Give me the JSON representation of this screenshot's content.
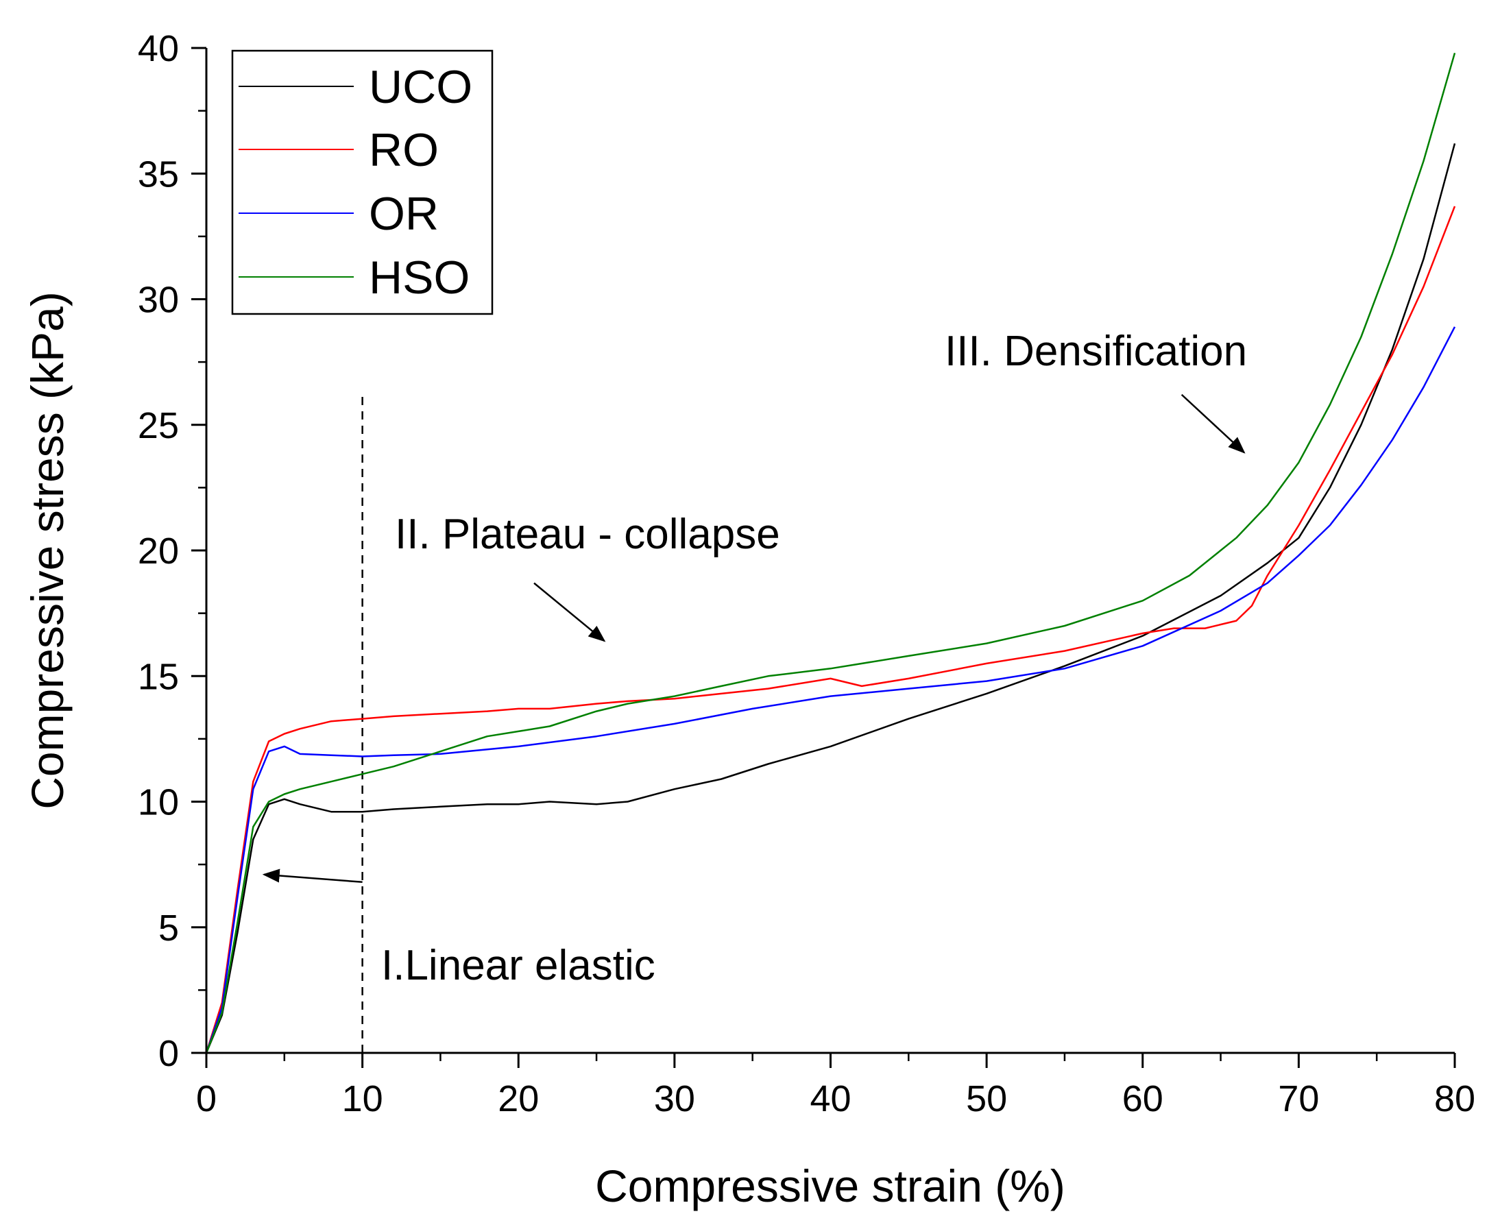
{
  "chart_data": {
    "type": "line",
    "title": "",
    "xlabel": "Compressive strain (%)",
    "ylabel": "Compressive stress (kPa)",
    "xlim": [
      0,
      80
    ],
    "ylim": [
      0,
      40
    ],
    "xticks": [
      0,
      10,
      20,
      30,
      40,
      50,
      60,
      70,
      80
    ],
    "yticks": [
      0,
      5,
      10,
      15,
      20,
      25,
      30,
      35,
      40
    ],
    "xtick_labels": [
      "0",
      "10",
      "20",
      "30",
      "40",
      "50",
      "60",
      "70",
      "80"
    ],
    "ytick_labels": [
      "0",
      "5",
      "10",
      "15",
      "20",
      "25",
      "30",
      "35",
      "40"
    ],
    "grid": false,
    "legend_position": "top-left",
    "series": [
      {
        "name": "UCO",
        "color": "#000000",
        "x": [
          0,
          1,
          2,
          3,
          4,
          5,
          6,
          8,
          10,
          12,
          15,
          18,
          20,
          22,
          25,
          27,
          30,
          33,
          36,
          40,
          45,
          50,
          55,
          60,
          65,
          68,
          70,
          72,
          74,
          76,
          78,
          80
        ],
        "y": [
          0,
          1.5,
          4.8,
          8.5,
          9.9,
          10.1,
          9.9,
          9.6,
          9.6,
          9.7,
          9.8,
          9.9,
          9.9,
          10.0,
          9.9,
          10.0,
          10.5,
          10.9,
          11.5,
          12.2,
          13.3,
          14.3,
          15.4,
          16.6,
          18.2,
          19.5,
          20.5,
          22.5,
          25.0,
          28.0,
          31.6,
          36.2
        ]
      },
      {
        "name": "RO",
        "color": "#ff0000",
        "x": [
          0,
          1,
          2,
          3,
          4,
          5,
          6,
          8,
          10,
          12,
          15,
          18,
          20,
          22,
          25,
          27,
          30,
          33,
          36,
          40,
          42,
          45,
          50,
          55,
          60,
          62,
          64,
          66,
          67,
          68,
          70,
          72,
          74,
          76,
          78,
          80
        ],
        "y": [
          0,
          2.0,
          6.5,
          10.8,
          12.4,
          12.7,
          12.9,
          13.2,
          13.3,
          13.4,
          13.5,
          13.6,
          13.7,
          13.7,
          13.9,
          14.0,
          14.1,
          14.3,
          14.5,
          14.9,
          14.6,
          14.9,
          15.5,
          16.0,
          16.7,
          16.9,
          16.9,
          17.2,
          17.8,
          19.0,
          21.0,
          23.2,
          25.5,
          27.8,
          30.5,
          33.7
        ]
      },
      {
        "name": "OR",
        "color": "#0000ff",
        "x": [
          0,
          1,
          2,
          3,
          4,
          5,
          6,
          8,
          10,
          12,
          15,
          20,
          25,
          30,
          35,
          40,
          45,
          50,
          55,
          60,
          65,
          68,
          70,
          72,
          74,
          76,
          78,
          80
        ],
        "y": [
          0,
          1.8,
          6.2,
          10.5,
          12.0,
          12.2,
          11.9,
          11.85,
          11.8,
          11.85,
          11.9,
          12.2,
          12.6,
          13.1,
          13.7,
          14.2,
          14.5,
          14.8,
          15.3,
          16.2,
          17.6,
          18.7,
          19.8,
          21.0,
          22.6,
          24.4,
          26.5,
          28.9
        ]
      },
      {
        "name": "HSO",
        "color": "#008000",
        "x": [
          0,
          1,
          2,
          3,
          4,
          5,
          6,
          8,
          10,
          12,
          15,
          18,
          20,
          22,
          25,
          27,
          30,
          33,
          36,
          40,
          45,
          50,
          55,
          60,
          63,
          66,
          68,
          70,
          72,
          74,
          76,
          78,
          80
        ],
        "y": [
          0,
          1.6,
          5.2,
          9.0,
          10.0,
          10.3,
          10.5,
          10.8,
          11.1,
          11.4,
          12.0,
          12.6,
          12.8,
          13.0,
          13.6,
          13.9,
          14.2,
          14.6,
          15.0,
          15.3,
          15.8,
          16.3,
          17.0,
          18.0,
          19.0,
          20.5,
          21.8,
          23.5,
          25.8,
          28.5,
          31.8,
          35.5,
          39.8
        ]
      }
    ],
    "annotations": [
      {
        "text": "I.Linear elastic",
        "from": [
          10,
          6.8
        ],
        "to": [
          3.7,
          7.1
        ]
      },
      {
        "text": "II. Plateau - collapse",
        "from": [
          21,
          18.7
        ],
        "to": [
          25.5,
          16.4
        ]
      },
      {
        "text": "III. Densification",
        "from": [
          62.5,
          26.2
        ],
        "to": [
          66.5,
          23.9
        ]
      }
    ],
    "reference_line": {
      "x": 10,
      "y_from": 0,
      "y_to": 26.3,
      "style": "dashed"
    }
  }
}
